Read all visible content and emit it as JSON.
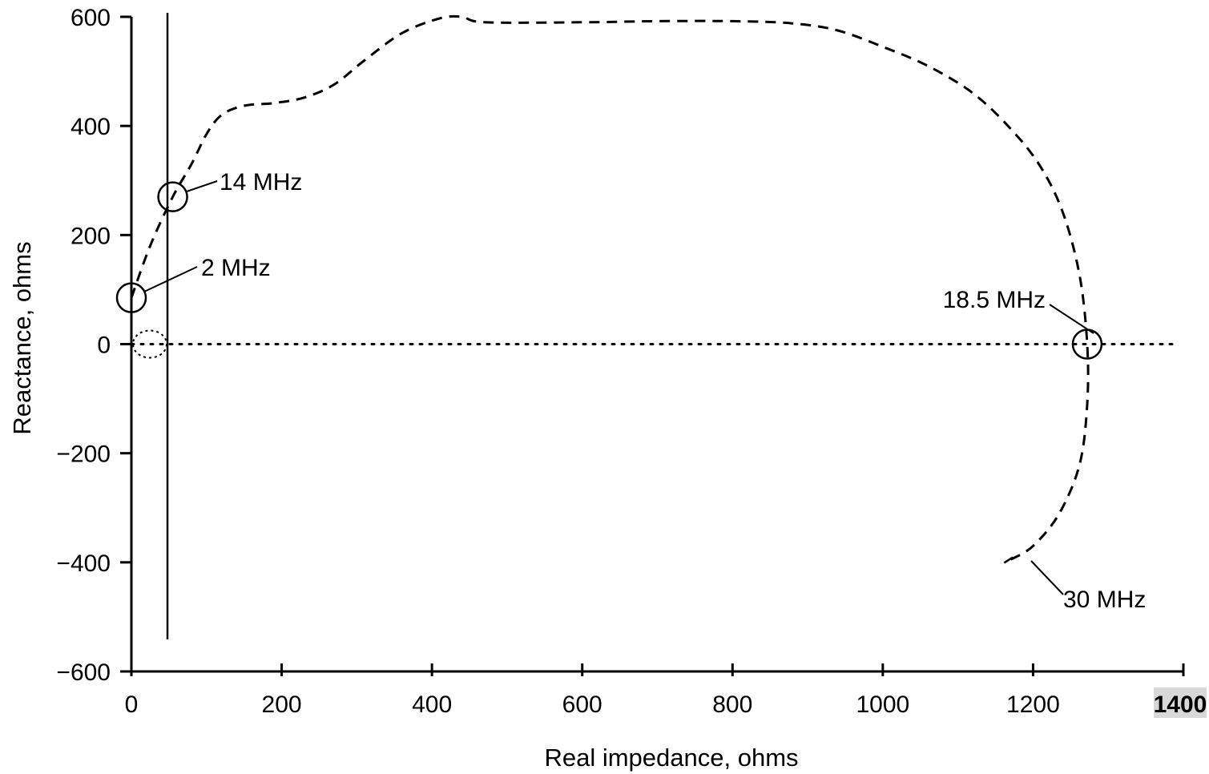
{
  "chart_data": {
    "type": "line",
    "title": "",
    "xlabel": "Real impedance, ohms",
    "ylabel": "Reactance, ohms",
    "xlim": [
      0,
      1400
    ],
    "ylim": [
      -600,
      600
    ],
    "x_ticks": [
      0,
      200,
      400,
      600,
      800,
      1000,
      1200,
      1400
    ],
    "y_ticks": [
      600,
      400,
      200,
      0,
      -200,
      -400,
      -600
    ],
    "x_tick_labels": [
      "0",
      "200",
      "400",
      "600",
      "800",
      "1000",
      "1200",
      "1400"
    ],
    "y_tick_labels": [
      "600",
      "400",
      "200",
      "0",
      "−200",
      "−400",
      "−600"
    ],
    "grid": false,
    "reference_lines": {
      "horizontal_dotted_y": 0,
      "vertical_solid_x": 48
    },
    "series": [
      {
        "style": "dashed",
        "color": "#000000",
        "points": [
          {
            "x": 0,
            "y": 85
          },
          {
            "x": 25,
            "y": 180
          },
          {
            "x": 55,
            "y": 270
          },
          {
            "x": 80,
            "y": 330
          },
          {
            "x": 100,
            "y": 385
          },
          {
            "x": 120,
            "y": 420
          },
          {
            "x": 150,
            "y": 437
          },
          {
            "x": 190,
            "y": 442
          },
          {
            "x": 230,
            "y": 452
          },
          {
            "x": 270,
            "y": 476
          },
          {
            "x": 310,
            "y": 520
          },
          {
            "x": 360,
            "y": 570
          },
          {
            "x": 410,
            "y": 597
          },
          {
            "x": 440,
            "y": 600
          },
          {
            "x": 470,
            "y": 590
          },
          {
            "x": 600,
            "y": 590
          },
          {
            "x": 700,
            "y": 592
          },
          {
            "x": 800,
            "y": 592
          },
          {
            "x": 880,
            "y": 588
          },
          {
            "x": 940,
            "y": 575
          },
          {
            "x": 1000,
            "y": 545
          },
          {
            "x": 1060,
            "y": 510
          },
          {
            "x": 1120,
            "y": 460
          },
          {
            "x": 1170,
            "y": 395
          },
          {
            "x": 1210,
            "y": 325
          },
          {
            "x": 1240,
            "y": 240
          },
          {
            "x": 1262,
            "y": 125
          },
          {
            "x": 1272,
            "y": 0
          },
          {
            "x": 1272,
            "y": -110
          },
          {
            "x": 1262,
            "y": -220
          },
          {
            "x": 1235,
            "y": -310
          },
          {
            "x": 1200,
            "y": -370
          },
          {
            "x": 1170,
            "y": -395
          }
        ]
      }
    ],
    "markers": [
      {
        "label": "2 MHz",
        "x": 0,
        "y": 85
      },
      {
        "label": "14 MHz",
        "x": 55,
        "y": 270
      },
      {
        "label": "18.5 MHz",
        "x": 1272,
        "y": 0
      },
      {
        "label": "30 MHz",
        "x": 1170,
        "y": -395
      }
    ],
    "colors": {
      "line": "#000000",
      "background": "#ffffff",
      "tick_highlight": "#d8d8d8"
    }
  }
}
